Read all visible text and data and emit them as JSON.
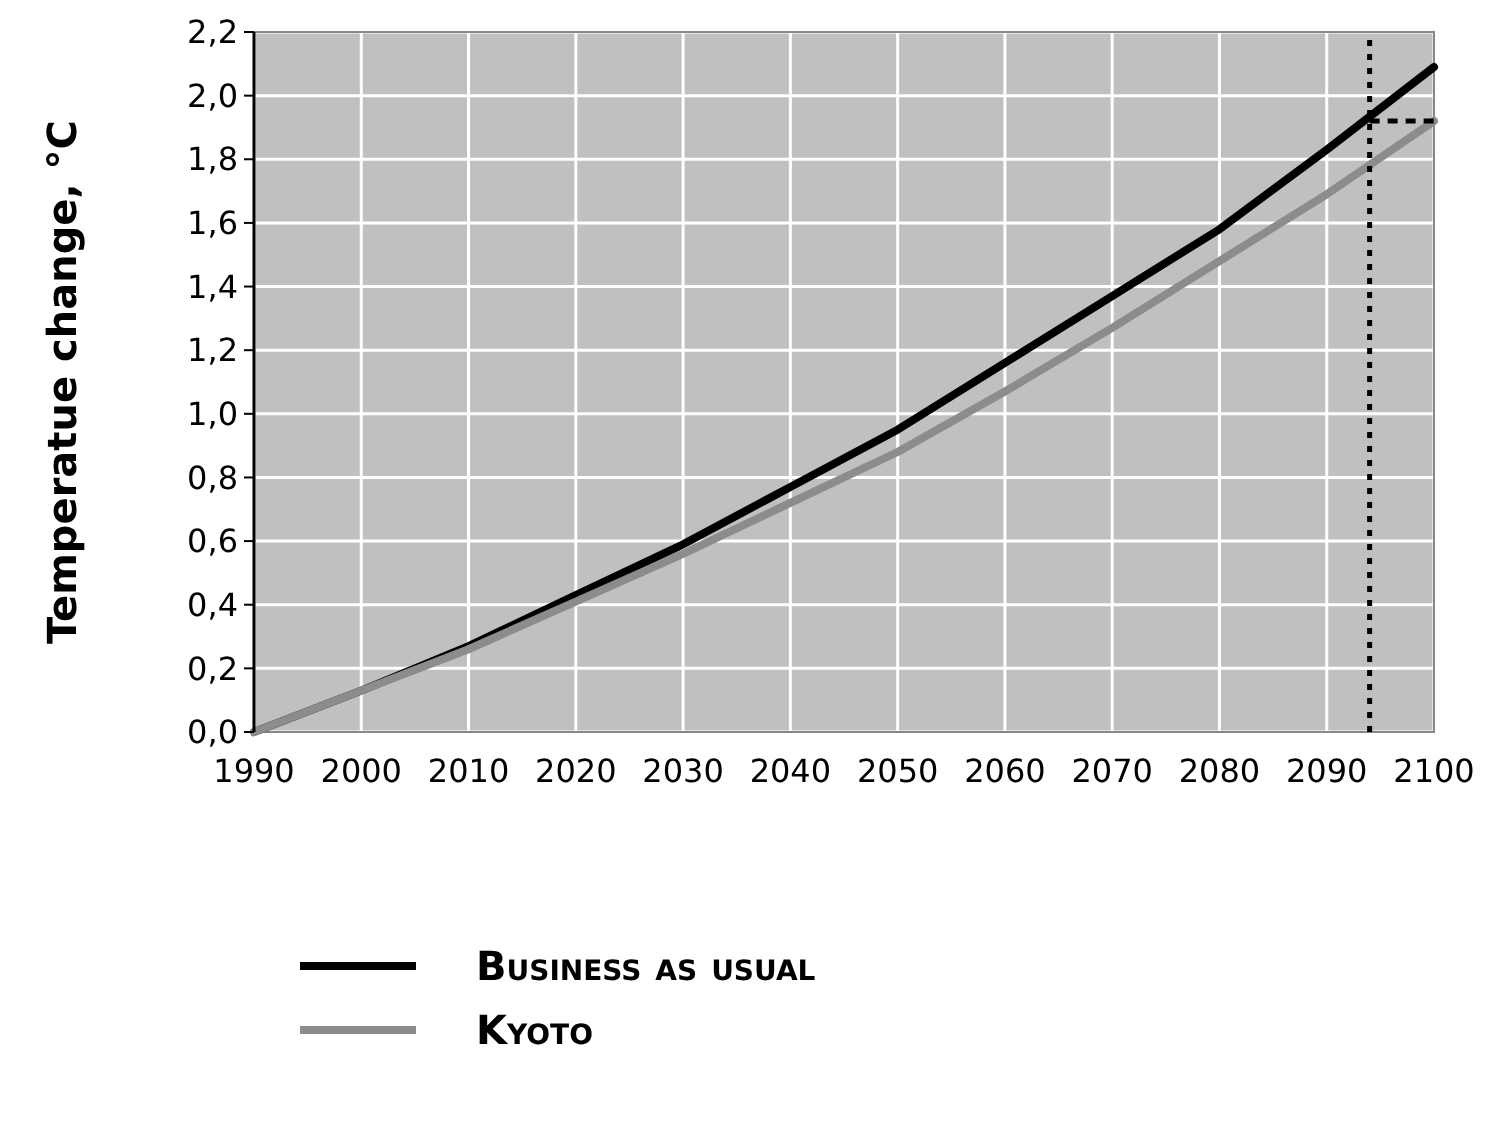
{
  "chart_data": {
    "type": "line",
    "ylabel": "Temperatue change, °C",
    "x": [
      1990,
      2000,
      2010,
      2020,
      2030,
      2040,
      2050,
      2060,
      2070,
      2080,
      2090,
      2100
    ],
    "series": [
      {
        "name": "Business as usual",
        "color": "#000000",
        "values": [
          0,
          0.13,
          0.27,
          0.43,
          0.59,
          0.77,
          0.95,
          1.16,
          1.37,
          1.58,
          1.83,
          2.09
        ]
      },
      {
        "name": "Kyoto",
        "color": "#8c8c8c",
        "values": [
          0,
          0.13,
          0.26,
          0.41,
          0.56,
          0.72,
          0.88,
          1.07,
          1.27,
          1.48,
          1.69,
          1.92
        ]
      },
      {
        "color": "#000000",
        "line_style": "dashed",
        "x": [
          2094,
          2100
        ],
        "values": [
          1.92,
          1.92
        ]
      }
    ],
    "ref_lines": [
      {
        "axis": "x",
        "value": 2094,
        "color": "#000000",
        "line_style": "dotted"
      }
    ],
    "xlim": [
      1990,
      2100
    ],
    "xticks": [
      1990,
      2000,
      2010,
      2020,
      2030,
      2040,
      2050,
      2060,
      2070,
      2080,
      2090,
      2100
    ],
    "ylim": [
      0,
      2.2
    ],
    "yticks": [
      {
        "value": 0,
        "label": "0,0"
      },
      {
        "value": 0.2,
        "label": "0,2"
      },
      {
        "value": 0.4,
        "label": "0,4"
      },
      {
        "value": 0.6,
        "label": "0,6"
      },
      {
        "value": 0.8,
        "label": "0,8"
      },
      {
        "value": 1,
        "label": "1,0"
      },
      {
        "value": 1.2,
        "label": "1,2"
      },
      {
        "value": 1.4,
        "label": "1,4"
      },
      {
        "value": 1.6,
        "label": "1,6"
      },
      {
        "value": 1.8,
        "label": "1,8"
      },
      {
        "value": 2,
        "label": "2,0"
      },
      {
        "value": 2.2,
        "label": "2,2"
      }
    ],
    "grid": true,
    "legend": "bottom",
    "marker": "none"
  }
}
